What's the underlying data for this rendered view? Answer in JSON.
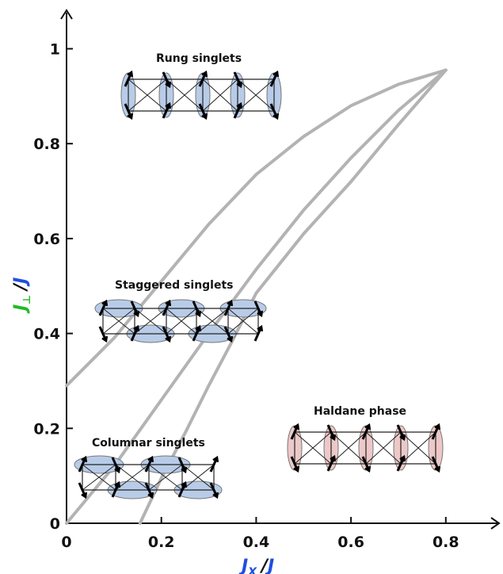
{
  "chart_data": {
    "type": "line",
    "title": "",
    "xlabel": {
      "main": "J",
      "sub": "X",
      "sep": "/",
      "den": "J"
    },
    "ylabel": {
      "main": "J",
      "sub": "⊥",
      "sep": "/",
      "den": "J"
    },
    "xlim": [
      0,
      0.92
    ],
    "ylim": [
      0,
      1.05
    ],
    "x_ticks": [
      "0",
      "0.2",
      "0.4",
      "0.6",
      "0.8"
    ],
    "y_ticks": [
      "0",
      "0.2",
      "0.4",
      "0.6",
      "0.8",
      "1"
    ],
    "grid": false,
    "legend": "none",
    "series": [
      {
        "points": [
          [
            0,
            0.29
          ],
          [
            0.1,
            0.39
          ],
          [
            0.2,
            0.51
          ],
          [
            0.3,
            0.63
          ],
          [
            0.4,
            0.735
          ],
          [
            0.5,
            0.815
          ],
          [
            0.6,
            0.88
          ],
          [
            0.7,
            0.925
          ],
          [
            0.8,
            0.955
          ]
        ]
      },
      {
        "points": [
          [
            0,
            0
          ],
          [
            0.05,
            0.06
          ],
          [
            0.1,
            0.12
          ],
          [
            0.15,
            0.19
          ],
          [
            0.2,
            0.26
          ],
          [
            0.25,
            0.33
          ],
          [
            0.3,
            0.4
          ],
          [
            0.4,
            0.535
          ],
          [
            0.5,
            0.66
          ],
          [
            0.6,
            0.77
          ],
          [
            0.7,
            0.87
          ],
          [
            0.8,
            0.955
          ]
        ]
      },
      {
        "points": [
          [
            0.155,
            0
          ],
          [
            0.2,
            0.095
          ],
          [
            0.25,
            0.19
          ],
          [
            0.3,
            0.29
          ],
          [
            0.35,
            0.385
          ],
          [
            0.4,
            0.485
          ],
          [
            0.5,
            0.61
          ],
          [
            0.6,
            0.72
          ],
          [
            0.7,
            0.84
          ],
          [
            0.8,
            0.955
          ]
        ]
      }
    ],
    "line_color": "#b3b3b3",
    "annotations": [
      {
        "text": "Rung singlets"
      },
      {
        "text": "Staggered singlets"
      },
      {
        "text": "Columnar singlets"
      },
      {
        "text": "Haldane phase"
      }
    ],
    "colors": {
      "singlet_fill": "#b8cce8",
      "haldane_fill": "#edc8c8",
      "x_label": "#1f4fe0",
      "y_label_main": "#22bb22",
      "y_label_den": "#1f4fe0"
    }
  }
}
